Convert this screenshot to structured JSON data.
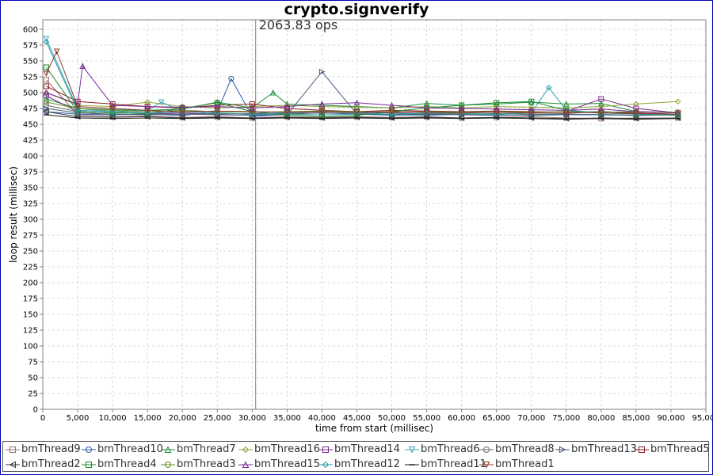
{
  "chart_data": {
    "type": "line",
    "title": "crypto.signverify",
    "xlabel": "time from start (millisec)",
    "ylabel": "loop result (millisec)",
    "xlim": [
      0,
      95000
    ],
    "ylim": [
      0,
      615
    ],
    "x_ticks": [
      0,
      5000,
      10000,
      15000,
      20000,
      25000,
      30000,
      35000,
      40000,
      45000,
      50000,
      55000,
      60000,
      65000,
      70000,
      75000,
      80000,
      85000,
      90000,
      95000
    ],
    "x_tick_labels": [
      "0",
      "5,000",
      "10,000",
      "15,000",
      "20,000",
      "25,000",
      "30,000",
      "35,000",
      "40,000",
      "45,000",
      "50,000",
      "55,000",
      "60,000",
      "65,000",
      "70,000",
      "75,000",
      "80,000",
      "85,000",
      "90,000",
      "95,000"
    ],
    "y_ticks": [
      0,
      25,
      50,
      75,
      100,
      125,
      150,
      175,
      200,
      225,
      250,
      275,
      300,
      325,
      350,
      375,
      400,
      425,
      450,
      475,
      500,
      525,
      550,
      575,
      600
    ],
    "grid": true,
    "legend_position": "bottom",
    "annotation": {
      "x": 30500,
      "text": "2063.83 ops"
    },
    "series": [
      {
        "name": "bmThread9",
        "marker": "square",
        "color": "#a07070",
        "x": [
          500,
          5000,
          10000,
          15000,
          20000,
          25000,
          30000,
          35000,
          40000,
          45000,
          50000,
          55000,
          60000,
          65000,
          70000,
          75000,
          80000,
          85000,
          91000
        ],
        "y": [
          520,
          465,
          462,
          463,
          461,
          462,
          460,
          462,
          461,
          462,
          461,
          462,
          460,
          461,
          462,
          460,
          459,
          460,
          460
        ]
      },
      {
        "name": "bmThread10",
        "marker": "circle",
        "color": "#2a5ba8",
        "x": [
          500,
          5000,
          10000,
          15000,
          20000,
          25000,
          27000,
          30000,
          35000,
          40000,
          45000,
          50000,
          55000,
          60000,
          65000,
          70000,
          75000,
          80000,
          85000,
          91000
        ],
        "y": [
          470,
          466,
          465,
          466,
          464,
          470,
          522,
          462,
          466,
          468,
          466,
          465,
          464,
          466,
          465,
          464,
          465,
          465,
          464,
          465
        ]
      },
      {
        "name": "bmThread7",
        "marker": "triangle-up",
        "color": "#1e8c3a",
        "x": [
          500,
          5000,
          10000,
          15000,
          20000,
          25000,
          30000,
          33000,
          35000,
          40000,
          45000,
          50000,
          55000,
          60000,
          65000,
          70000,
          75000,
          80000,
          85000,
          91000
        ],
        "y": [
          490,
          475,
          473,
          472,
          474,
          485,
          476,
          500,
          482,
          480,
          478,
          476,
          483,
          480,
          482,
          485,
          482,
          483,
          470,
          468
        ]
      },
      {
        "name": "bmThread16",
        "marker": "diamond",
        "color": "#8aa838",
        "x": [
          500,
          5000,
          10000,
          15000,
          20000,
          25000,
          30000,
          35000,
          40000,
          45000,
          50000,
          55000,
          60000,
          65000,
          70000,
          75000,
          80000,
          85000,
          91000
        ],
        "y": [
          500,
          480,
          478,
          485,
          478,
          476,
          478,
          480,
          478,
          477,
          476,
          478,
          476,
          478,
          477,
          476,
          478,
          482,
          486
        ]
      },
      {
        "name": "bmThread14",
        "marker": "square",
        "color": "#7a2a8a",
        "x": [
          500,
          5000,
          10000,
          15000,
          20000,
          25000,
          30000,
          35000,
          40000,
          45000,
          50000,
          55000,
          60000,
          65000,
          70000,
          75000,
          80000,
          85000,
          91000
        ],
        "y": [
          495,
          470,
          468,
          467,
          468,
          466,
          467,
          468,
          470,
          469,
          468,
          467,
          468,
          469,
          468,
          470,
          490,
          475,
          468
        ]
      },
      {
        "name": "bmThread6",
        "marker": "triangle-down",
        "color": "#3aa8b8",
        "x": [
          500,
          5000,
          10000,
          15000,
          17000,
          20000,
          25000,
          30000,
          35000,
          40000,
          45000,
          50000,
          55000,
          60000,
          65000,
          70000,
          75000,
          80000,
          85000,
          91000
        ],
        "y": [
          585,
          475,
          470,
          472,
          485,
          470,
          468,
          465,
          466,
          465,
          466,
          464,
          465,
          466,
          465,
          464,
          465,
          466,
          464,
          465
        ]
      },
      {
        "name": "bmThread8",
        "marker": "circle",
        "color": "#6a6a6a",
        "x": [
          500,
          5000,
          10000,
          15000,
          20000,
          25000,
          30000,
          35000,
          40000,
          45000,
          50000,
          55000,
          60000,
          65000,
          70000,
          75000,
          80000,
          85000,
          91000
        ],
        "y": [
          480,
          470,
          468,
          467,
          466,
          467,
          466,
          467,
          468,
          467,
          466,
          467,
          466,
          467,
          466,
          467,
          470,
          468,
          466
        ]
      },
      {
        "name": "bmThread13",
        "marker": "triangle-right",
        "color": "#4a5a7a",
        "x": [
          500,
          5000,
          10000,
          15000,
          20000,
          25000,
          30000,
          35000,
          40000,
          45000,
          50000,
          55000,
          60000,
          65000,
          70000,
          75000,
          80000,
          85000,
          91000
        ],
        "y": [
          475,
          468,
          466,
          465,
          466,
          465,
          464,
          465,
          533,
          466,
          465,
          466,
          465,
          464,
          465,
          466,
          465,
          464,
          465
        ]
      },
      {
        "name": "bmThread5",
        "marker": "square",
        "color": "#8a2020",
        "x": [
          500,
          5000,
          10000,
          15000,
          20000,
          25000,
          30000,
          35000,
          40000,
          45000,
          50000,
          55000,
          60000,
          65000,
          70000,
          75000,
          80000,
          85000,
          91000
        ],
        "y": [
          510,
          486,
          482,
          478,
          476,
          480,
          482,
          475,
          472,
          470,
          472,
          471,
          470,
          471,
          470,
          469,
          470,
          468,
          466
        ]
      },
      {
        "name": "bmThread2",
        "marker": "triangle-left",
        "color": "#3a3a3a",
        "x": [
          500,
          5000,
          10000,
          15000,
          20000,
          25000,
          30000,
          35000,
          40000,
          45000,
          50000,
          55000,
          60000,
          65000,
          70000,
          75000,
          80000,
          85000,
          91000
        ],
        "y": [
          470,
          462,
          461,
          462,
          460,
          461,
          460,
          461,
          460,
          461,
          460,
          461,
          460,
          461,
          460,
          459,
          460,
          459,
          460
        ]
      },
      {
        "name": "bmThread4",
        "marker": "square",
        "color": "#1a8a2a",
        "x": [
          500,
          5000,
          10000,
          15000,
          20000,
          25000,
          30000,
          35000,
          40000,
          45000,
          50000,
          55000,
          60000,
          65000,
          70000,
          75000,
          80000,
          85000,
          91000
        ],
        "y": [
          540,
          470,
          468,
          467,
          475,
          484,
          470,
          465,
          462,
          464,
          470,
          476,
          480,
          484,
          486,
          472,
          468,
          466,
          464
        ]
      },
      {
        "name": "bmThread3",
        "marker": "circle",
        "color": "#6a8a2a",
        "x": [
          500,
          5000,
          10000,
          15000,
          20000,
          25000,
          30000,
          35000,
          40000,
          45000,
          50000,
          55000,
          60000,
          65000,
          70000,
          75000,
          80000,
          85000,
          91000
        ],
        "y": [
          485,
          475,
          472,
          470,
          472,
          470,
          469,
          470,
          471,
          470,
          469,
          470,
          469,
          470,
          469,
          470,
          469,
          470,
          469
        ]
      },
      {
        "name": "bmThread15",
        "marker": "triangle-up",
        "color": "#7a2a9a",
        "x": [
          500,
          5000,
          5700,
          10000,
          15000,
          20000,
          25000,
          30000,
          35000,
          40000,
          45000,
          50000,
          55000,
          60000,
          65000,
          70000,
          75000,
          80000,
          85000,
          91000
        ],
        "y": [
          500,
          482,
          542,
          480,
          478,
          477,
          478,
          476,
          478,
          482,
          484,
          480,
          476,
          475,
          474,
          473,
          472,
          474,
          470,
          468
        ]
      },
      {
        "name": "bmThread12",
        "marker": "diamond",
        "color": "#2a9aa8",
        "x": [
          500,
          5000,
          10000,
          15000,
          20000,
          25000,
          30000,
          35000,
          40000,
          45000,
          50000,
          55000,
          60000,
          65000,
          70000,
          72500,
          75000,
          80000,
          85000,
          91000
        ],
        "y": [
          580,
          472,
          470,
          468,
          470,
          468,
          466,
          468,
          470,
          468,
          466,
          468,
          467,
          466,
          468,
          508,
          472,
          468,
          466,
          465
        ]
      },
      {
        "name": "bmThread11",
        "marker": "dash",
        "color": "#1a1a1a",
        "x": [
          500,
          5000,
          10000,
          15000,
          20000,
          25000,
          30000,
          35000,
          40000,
          45000,
          50000,
          55000,
          60000,
          65000,
          70000,
          75000,
          80000,
          85000,
          91000
        ],
        "y": [
          465,
          460,
          459,
          460,
          459,
          460,
          459,
          460,
          459,
          460,
          459,
          460,
          459,
          460,
          459,
          458,
          459,
          458,
          459
        ]
      },
      {
        "name": "bmThread1",
        "marker": "triangle-down",
        "color": "#8a3a2a",
        "x": [
          500,
          2000,
          5000,
          10000,
          15000,
          20000,
          25000,
          30000,
          35000,
          40000,
          45000,
          50000,
          55000,
          60000,
          65000,
          70000,
          75000,
          80000,
          85000,
          91000
        ],
        "y": [
          530,
          565,
          478,
          475,
          472,
          470,
          471,
          470,
          469,
          470,
          469,
          470,
          469,
          468,
          469,
          468,
          469,
          468,
          467,
          466
        ]
      }
    ]
  }
}
